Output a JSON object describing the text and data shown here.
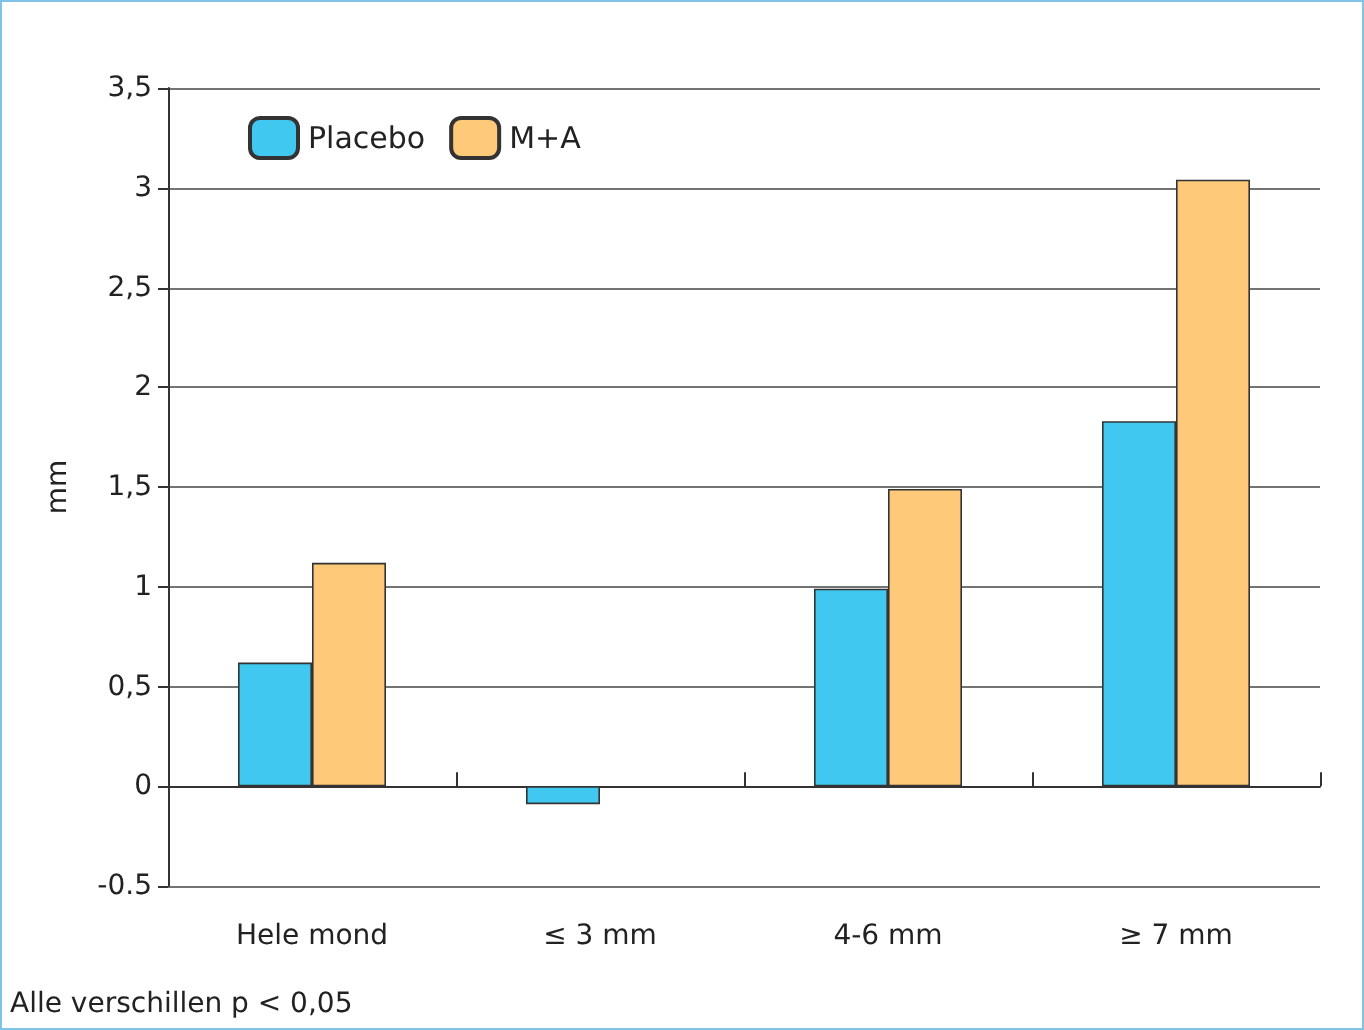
{
  "chart_data": {
    "type": "bar",
    "ylabel": "mm",
    "categories": [
      "Hele mond",
      "≤ 3 mm",
      "4-6 mm",
      "≥ 7 mm"
    ],
    "series": [
      {
        "name": "Placebo",
        "color": "#40c8f0",
        "values": [
          0.62,
          -0.09,
          0.99,
          1.83
        ]
      },
      {
        "name": "M+A",
        "color": "#fec979",
        "values": [
          1.12,
          null,
          1.49,
          3.04
        ]
      }
    ],
    "ylim": [
      -0.5,
      3.5
    ],
    "yticks": [
      {
        "value": -0.5,
        "label": "-0.5"
      },
      {
        "value": 0,
        "label": "0"
      },
      {
        "value": 0.5,
        "label": "0,5"
      },
      {
        "value": 1,
        "label": "1"
      },
      {
        "value": 1.5,
        "label": "1,5"
      },
      {
        "value": 2,
        "label": "2"
      },
      {
        "value": 2.5,
        "label": "2,5"
      },
      {
        "value": 3,
        "label": "3"
      },
      {
        "value": 3.5,
        "label": "3,5"
      }
    ],
    "grid": "y",
    "legend": "top left",
    "annotations": [
      "Alle verschillen p < 0,05"
    ]
  }
}
